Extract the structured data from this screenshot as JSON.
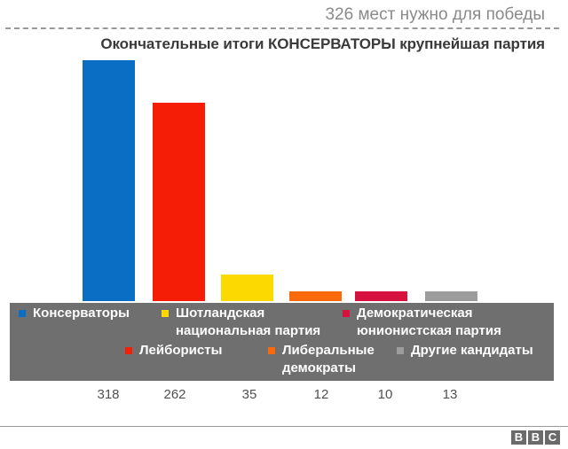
{
  "header": {
    "seats_needed": "326 мест нужно для победы",
    "title": "Окончательные итоги КОНСЕРВАТОРЫ крупнейшая партия"
  },
  "chart_data": {
    "type": "bar",
    "title": "Окончательные итоги КОНСЕРВАТОРЫ крупнейшая партия",
    "subtitle": "326 мест нужно для победы",
    "categories": [
      "Консерваторы",
      "Лейбористы",
      "Шотландская национальная партия",
      "Либеральные демократы",
      "Демократическая юнионистская партия",
      "Другие кандидаты"
    ],
    "values": [
      318,
      262,
      35,
      12,
      10,
      13
    ],
    "colors": [
      "#0a6fc4",
      "#f51d05",
      "#fcd900",
      "#fa6a0a",
      "#d6103f",
      "#9c9c9c"
    ],
    "xlabel": "",
    "ylabel": "",
    "value_labels": [
      "318",
      "262",
      "35",
      "12",
      "10",
      "13"
    ],
    "annotation": "326 мест нужно для победы",
    "grid": false,
    "legend_position": "bottom"
  },
  "legend": {
    "items": [
      {
        "label": "Консерваторы",
        "color": "#0a6fc4"
      },
      {
        "label": "Шотландская\nнациональная партия",
        "color": "#fcd900"
      },
      {
        "label": "Демократическая\nюнионистская партия",
        "color": "#d6103f"
      },
      {
        "label": "Лейбористы",
        "color": "#f51d05"
      },
      {
        "label": "Либеральные\nдемократы",
        "color": "#fa6a0a"
      },
      {
        "label": "Другие кандидаты",
        "color": "#9c9c9c"
      }
    ]
  },
  "footer": {
    "logo": [
      "B",
      "B",
      "C"
    ]
  }
}
